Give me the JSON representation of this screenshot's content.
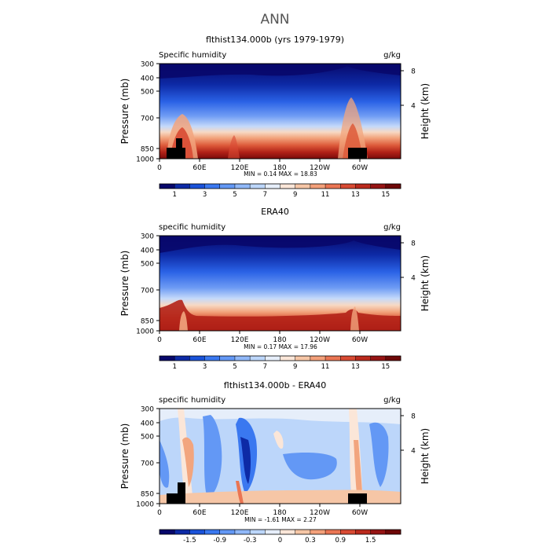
{
  "figure": {
    "title": "ANN"
  },
  "panels": [
    {
      "title": "flthist134.000b (yrs 1979-1979)",
      "left_label": "Specific humidity",
      "units": "g/kg",
      "stats_text": "MIN =    0.14   MAX =   18.83"
    },
    {
      "title": "ERA40",
      "left_label": "specific humidity",
      "units": "g/kg",
      "stats_text": "MIN =    0.17   MAX =   17.96"
    },
    {
      "title": "flthist134.000b - ERA40",
      "left_label": "specific humidity",
      "units": "g/kg",
      "stats_text": "MIN =  -1.61   MAX =    2.27"
    }
  ],
  "axes": {
    "ylabel": "Pressure (mb)",
    "y2label": "Height (km)",
    "y_ticks": [
      "300",
      "400",
      "500",
      "700",
      "850",
      "1000"
    ],
    "y2_ticks": [
      "8",
      "4"
    ],
    "x_ticks": [
      "0",
      "60E",
      "120E",
      "180",
      "120W",
      "60W"
    ]
  },
  "colorbars": {
    "abs": {
      "labels": [
        "1",
        "3",
        "5",
        "7",
        "9",
        "11",
        "13",
        "15"
      ],
      "colors": [
        "#08086b",
        "#0d2aa6",
        "#1a52d9",
        "#3a78f0",
        "#6398f5",
        "#90b8f8",
        "#bcd6fa",
        "#e6eefa",
        "#fbe6d8",
        "#f6c6a6",
        "#f3a07a",
        "#ea7553",
        "#d84a33",
        "#bb2a1d",
        "#961414",
        "#6e0808"
      ]
    },
    "diff": {
      "labels": [
        "-1.5",
        "-0.9",
        "-0.3",
        "0",
        "0.3",
        "0.9",
        "1.5"
      ],
      "colors": [
        "#08086b",
        "#0d2aa6",
        "#1a52d9",
        "#3a78f0",
        "#6398f5",
        "#90b8f8",
        "#bcd6fa",
        "#e6eefa",
        "#fbe6d8",
        "#f6c6a6",
        "#f3a07a",
        "#ea7553",
        "#d84a33",
        "#bb2a1d",
        "#961414",
        "#6e0808"
      ]
    }
  },
  "chart_data": [
    {
      "type": "heatmap",
      "title": "flthist134.000b (yrs 1979-1979)",
      "xlabel": "",
      "ylabel": "Pressure (mb)",
      "x_ticks": [
        "0",
        "60E",
        "120E",
        "180",
        "120W",
        "60W"
      ],
      "y_ticks": [
        300,
        400,
        500,
        700,
        850,
        1000
      ],
      "ylim": [
        1000,
        300
      ],
      "units": "g/kg",
      "min": 0.14,
      "max": 18.83,
      "levels": [
        1,
        3,
        5,
        7,
        9,
        11,
        13,
        15
      ]
    },
    {
      "type": "heatmap",
      "title": "ERA40",
      "xlabel": "",
      "ylabel": "Pressure (mb)",
      "x_ticks": [
        "0",
        "60E",
        "120E",
        "180",
        "120W",
        "60W"
      ],
      "y_ticks": [
        300,
        400,
        500,
        700,
        850,
        1000
      ],
      "ylim": [
        1000,
        300
      ],
      "units": "g/kg",
      "min": 0.17,
      "max": 17.96,
      "levels": [
        1,
        3,
        5,
        7,
        9,
        11,
        13,
        15
      ]
    },
    {
      "type": "heatmap",
      "title": "flthist134.000b - ERA40",
      "xlabel": "",
      "ylabel": "Pressure (mb)",
      "x_ticks": [
        "0",
        "60E",
        "120E",
        "180",
        "120W",
        "60W"
      ],
      "y_ticks": [
        300,
        400,
        500,
        700,
        850,
        1000
      ],
      "ylim": [
        1000,
        300
      ],
      "units": "g/kg",
      "min": -1.61,
      "max": 2.27,
      "levels": [
        -1.5,
        -0.9,
        -0.3,
        0,
        0.3,
        0.9,
        1.5
      ]
    }
  ]
}
